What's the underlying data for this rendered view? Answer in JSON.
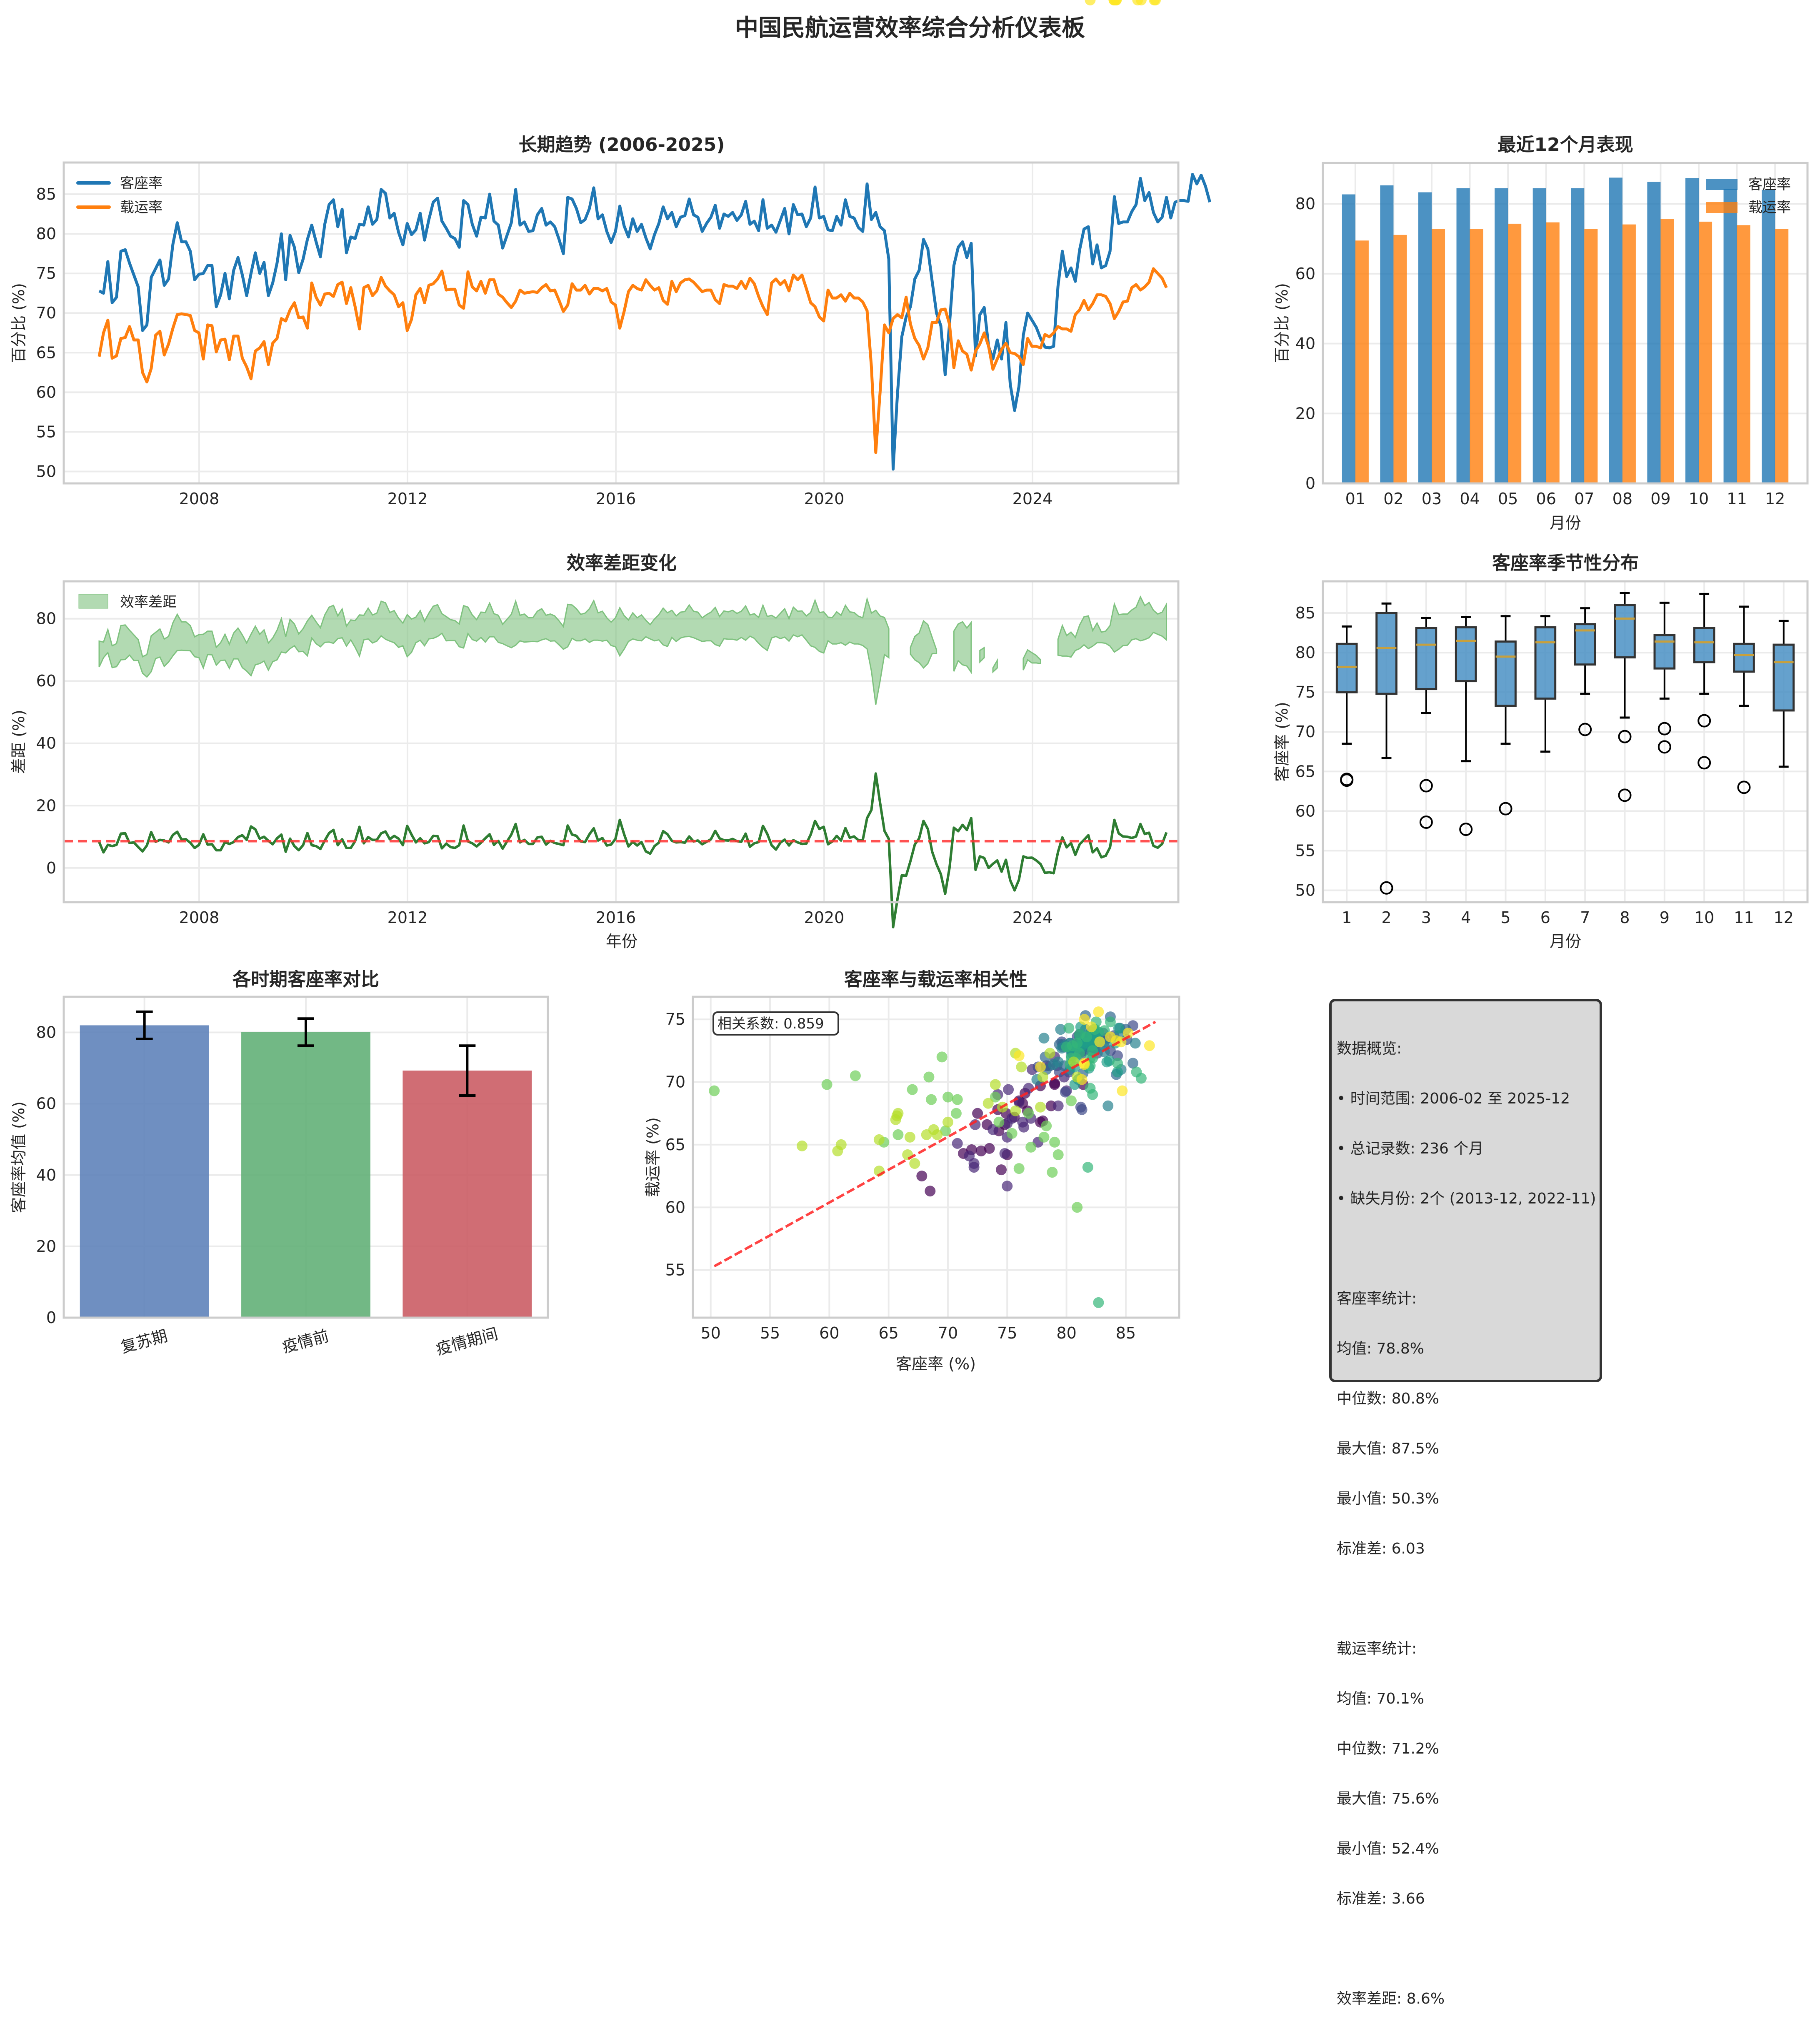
{
  "suptitle": "中国民航运营效率综合分析仪表板",
  "colors": {
    "load_factor": "#1f77b4",
    "cargo_rate": "#ff7f0e",
    "gap_fill": "#7fc27f",
    "gap_line": "#2e7d32",
    "mean_line": "#ff3333",
    "box_fill": "#4a90c4",
    "median": "#c8a03c",
    "period_colors": [
      "#5b7fb8",
      "#5fae74",
      "#c95961"
    ]
  },
  "chart_data": [
    {
      "id": "trend",
      "type": "line",
      "title": "长期趋势 (2006-2025)",
      "xlabel": "",
      "ylabel": "百分比 (%)",
      "xlim": [
        2005.4,
        2026.8
      ],
      "ylim": [
        48.5,
        89
      ],
      "xticks": [
        2008,
        2012,
        2016,
        2020,
        2024
      ],
      "yticks": [
        50,
        55,
        60,
        65,
        70,
        75,
        80,
        85
      ],
      "grid": true,
      "legend": "top-left",
      "start": 2006.08,
      "step": 0.0833,
      "series": [
        {
          "name": "客座率",
          "values": [
            72.8,
            72.5,
            76.5,
            71.3,
            72.0,
            77.8,
            78.0,
            76.3,
            74.8,
            73.3,
            67.8,
            68.5,
            74.5,
            75.6,
            76.7,
            73.5,
            74.3,
            78.7,
            81.4,
            79.0,
            79.0,
            77.8,
            74.2,
            74.9,
            75.0,
            76.0,
            76.0,
            70.8,
            72.3,
            75.0,
            71.8,
            75.4,
            77.0,
            74.8,
            72.2,
            75.0,
            77.6,
            75.0,
            76.4,
            72.2,
            73.8,
            76.3,
            80.0,
            74.2,
            79.8,
            78.3,
            75.1,
            76.8,
            79.3,
            81.1,
            79.0,
            77.1,
            81.2,
            83.7,
            84.3,
            80.9,
            83.1,
            77.6,
            79.6,
            79.4,
            81.2,
            81.1,
            83.4,
            81.2,
            81.8,
            85.6,
            85.1,
            82.0,
            82.6,
            80.2,
            78.6,
            81.3,
            79.9,
            80.5,
            82.6,
            79.2,
            81.8,
            84.0,
            84.5,
            81.6,
            80.7,
            79.7,
            79.4,
            78.3,
            84.2,
            83.7,
            81.2,
            79.7,
            82.1,
            82.0,
            85.0,
            81.6,
            81.1,
            78.2,
            79.8,
            81.4,
            85.6,
            81.1,
            81.5,
            80.3,
            80.4,
            82.4,
            83.2,
            81.1,
            81.5,
            80.9,
            79.3,
            77.5,
            84.6,
            84.4,
            83.2,
            81.4,
            81.8,
            83.2,
            85.8,
            81.9,
            82.4,
            80.3,
            78.9,
            80.3,
            83.5,
            81.0,
            79.6,
            81.9,
            80.3,
            81.2,
            79.5,
            78.1,
            79.9,
            81.3,
            83.4,
            81.9,
            82.7,
            80.9,
            82.1,
            82.3,
            84.4,
            82.4,
            82.1,
            80.3,
            81.3,
            82.1,
            83.6,
            80.7,
            82.5,
            82.2,
            82.7,
            81.7,
            82.4,
            84.1,
            81.2,
            81.6,
            80.4,
            84.3,
            80.7,
            81.1,
            80.2,
            81.7,
            83.2,
            80.0,
            83.7,
            82.4,
            82.5,
            80.9,
            82.0,
            85.9,
            82.0,
            82.2,
            80.5,
            80.4,
            82.2,
            81.1,
            84.3,
            82.2,
            82.0,
            80.8,
            80.3,
            86.3,
            81.8,
            82.7,
            80.9,
            80.4,
            76.8,
            50.3,
            59.8,
            67.0,
            69.5,
            70.8,
            74.3,
            75.4,
            79.3,
            78.1,
            74.0,
            70.0,
            68.4,
            62.2,
            68.6,
            76.0,
            78.3,
            79.0,
            77.0,
            78.8,
            64.6,
            69.8,
            70.7,
            65.8,
            64.2,
            66.6,
            64.2,
            68.8,
            61.0,
            57.7,
            60.7,
            67.2,
            70.0,
            69.1,
            68.2,
            66.8,
            65.7,
            65.6,
            65.8,
            73.4,
            77.8,
            74.6,
            75.7,
            74.0,
            78.0,
            80.6,
            80.9,
            76.2,
            78.6,
            75.7,
            76.0,
            77.8,
            84.7,
            81.3,
            81.5,
            81.5,
            82.8,
            83.7,
            87.0,
            84.2,
            85.2,
            82.7,
            81.5,
            82.1,
            84.6,
            82.0,
            84.0,
            84.2,
            84.2,
            84.1,
            87.5,
            86.3,
            87.4,
            86.0,
            84.0
          ]
        },
        {
          "name": "载运率",
          "values": [
            64.5,
            67.5,
            69.1,
            64.3,
            64.6,
            66.8,
            66.9,
            68.3,
            66.6,
            66.6,
            62.5,
            61.3,
            63.0,
            67.2,
            67.7,
            64.7,
            66.1,
            68.1,
            69.8,
            69.9,
            69.8,
            69.7,
            67.8,
            67.5,
            64.2,
            68.5,
            68.4,
            65.1,
            66.6,
            66.7,
            64.1,
            67.1,
            67.1,
            64.3,
            63.2,
            61.7,
            65.2,
            65.6,
            66.4,
            63.5,
            66.2,
            66.8,
            69.3,
            69.0,
            70.4,
            71.3,
            69.4,
            69.5,
            68.1,
            73.8,
            72.0,
            71.0,
            72.4,
            72.5,
            72.1,
            73.6,
            73.9,
            71.2,
            73.2,
            70.8,
            68.0,
            73.2,
            73.5,
            72.2,
            72.8,
            74.5,
            73.4,
            72.8,
            72.3,
            70.8,
            71.3,
            67.8,
            69.2,
            72.3,
            73.1,
            71.3,
            73.5,
            73.7,
            74.3,
            75.3,
            72.9,
            73.0,
            73.0,
            71.0,
            70.6,
            75.2,
            73.3,
            72.8,
            74.0,
            72.5,
            74.2,
            74.2,
            72.4,
            72.0,
            71.3,
            70.7,
            71.5,
            72.9,
            72.5,
            72.6,
            72.7,
            72.6,
            73.2,
            73.6,
            72.8,
            72.9,
            71.6,
            70.2,
            71.0,
            73.7,
            72.9,
            72.9,
            73.5,
            72.4,
            73.1,
            73.1,
            72.8,
            73.1,
            71.4,
            71.0,
            68.1,
            70.2,
            72.7,
            73.5,
            73.1,
            72.9,
            74.2,
            73.5,
            72.9,
            73.2,
            71.6,
            71.1,
            74.0,
            72.7,
            73.8,
            74.2,
            74.3,
            73.9,
            73.3,
            72.7,
            72.9,
            72.9,
            71.7,
            71.2,
            73.6,
            73.4,
            73.4,
            73.1,
            74.0,
            73.1,
            74.4,
            73.7,
            72.1,
            70.8,
            69.8,
            73.8,
            74.3,
            73.6,
            74.1,
            72.8,
            74.8,
            74.2,
            74.8,
            73.1,
            71.3,
            70.8,
            69.5,
            69.0,
            72.9,
            71.9,
            71.9,
            72.3,
            71.5,
            72.5,
            71.9,
            71.9,
            71.4,
            70.3,
            63.2,
            52.4,
            60.0,
            68.5,
            67.5,
            69.3,
            69.8,
            69.4,
            72.0,
            68.6,
            66.8,
            65.9,
            64.2,
            65.6,
            68.8,
            68.8,
            70.4,
            70.5,
            68.6,
            63.1,
            66.5,
            65.2,
            64.8,
            62.8,
            65.2,
            66.1,
            67.5,
            65.8,
            62.9,
            64.2,
            65.4,
            66.2,
            65.0,
            64.9,
            64.5,
            63.5,
            66.8,
            65.8,
            65.8,
            65.6,
            67.3,
            67.0,
            67.5,
            68.3,
            68.0,
            68.0,
            67.7,
            69.8,
            70.4,
            71.6,
            70.4,
            71.2,
            72.3,
            72.3,
            72.1,
            71.2,
            69.3,
            70.2,
            71.4,
            71.5,
            73.2,
            73.6,
            72.9,
            73.3,
            73.9,
            75.6,
            75.0,
            74.4,
            73.2
          ]
        }
      ]
    },
    {
      "id": "recent12",
      "type": "bar",
      "title": "最近12个月表现",
      "xlabel": "月份",
      "ylabel": "百分比 (%)",
      "ylim": [
        0,
        91.7
      ],
      "yticks": [
        0,
        20,
        40,
        60,
        80
      ],
      "categories": [
        "01",
        "02",
        "03",
        "04",
        "05",
        "06",
        "07",
        "08",
        "09",
        "10",
        "11",
        "12"
      ],
      "legend": "top-right",
      "series": [
        {
          "name": "客座率",
          "values": [
            82.7,
            85.3,
            83.3,
            84.5,
            84.5,
            84.5,
            84.5,
            87.5,
            86.3,
            87.4,
            84.3,
            84.0
          ]
        },
        {
          "name": "载运率",
          "values": [
            69.5,
            71.1,
            72.8,
            72.8,
            74.3,
            74.7,
            72.8,
            74.1,
            75.6,
            74.9,
            73.9,
            72.8
          ]
        }
      ]
    },
    {
      "id": "gap",
      "type": "area",
      "title": "效率差距变化",
      "xlabel": "年份",
      "ylabel": "差距 (%)",
      "xlim": [
        2005.4,
        2026.8
      ],
      "ylim": [
        -11,
        92
      ],
      "xticks": [
        2008,
        2012,
        2016,
        2020,
        2024
      ],
      "yticks": [
        0,
        20,
        40,
        60,
        80
      ],
      "legend": "top-left",
      "fill_label": "效率差距",
      "mean_gap": 8.6,
      "note": "fill between 客座率 and 载运率 where 客座率 > 载运率; line = 客座率 - 载运率"
    },
    {
      "id": "seasonal",
      "type": "box",
      "title": "客座率季节性分布",
      "xlabel": "月份",
      "ylabel": "客座率 (%)",
      "ylim": [
        48.5,
        89
      ],
      "yticks": [
        50,
        55,
        60,
        65,
        70,
        75,
        80,
        85
      ],
      "categories": [
        "1",
        "2",
        "3",
        "4",
        "5",
        "6",
        "7",
        "8",
        "9",
        "10",
        "11",
        "12"
      ],
      "boxes": [
        {
          "whislo": 68.5,
          "q1": 75.0,
          "med": 78.2,
          "q3": 81.1,
          "whishi": 83.3,
          "fliers": [
            63.9,
            64.0
          ]
        },
        {
          "whislo": 66.7,
          "q1": 74.8,
          "med": 80.6,
          "q3": 85.0,
          "whishi": 86.2,
          "fliers": [
            50.3
          ]
        },
        {
          "whislo": 72.4,
          "q1": 75.4,
          "med": 81.0,
          "q3": 83.1,
          "whishi": 84.4,
          "fliers": [
            63.2,
            58.6
          ]
        },
        {
          "whislo": 66.3,
          "q1": 76.4,
          "med": 81.5,
          "q3": 83.2,
          "whishi": 84.5,
          "fliers": [
            57.7
          ]
        },
        {
          "whislo": 68.5,
          "q1": 73.3,
          "med": 79.5,
          "q3": 81.4,
          "whishi": 84.6,
          "fliers": [
            60.3
          ]
        },
        {
          "whislo": 67.5,
          "q1": 74.2,
          "med": 81.3,
          "q3": 83.2,
          "whishi": 84.6,
          "fliers": []
        },
        {
          "whislo": 74.8,
          "q1": 78.5,
          "med": 82.8,
          "q3": 83.6,
          "whishi": 85.6,
          "fliers": [
            70.3
          ]
        },
        {
          "whislo": 71.8,
          "q1": 79.4,
          "med": 84.3,
          "q3": 86.0,
          "whishi": 87.5,
          "fliers": [
            69.4,
            62.0
          ]
        },
        {
          "whislo": 74.2,
          "q1": 78.0,
          "med": 81.4,
          "q3": 82.2,
          "whishi": 86.3,
          "fliers": [
            70.4,
            68.1
          ]
        },
        {
          "whislo": 74.8,
          "q1": 78.8,
          "med": 81.3,
          "q3": 83.1,
          "whishi": 87.4,
          "fliers": [
            71.4,
            66.1
          ]
        },
        {
          "whislo": 73.3,
          "q1": 77.6,
          "med": 79.7,
          "q3": 81.1,
          "whishi": 85.8,
          "fliers": [
            63.0
          ]
        },
        {
          "whislo": 65.6,
          "q1": 72.7,
          "med": 78.8,
          "q3": 81.0,
          "whishi": 84.0,
          "fliers": []
        }
      ]
    },
    {
      "id": "periods",
      "type": "bar",
      "title": "各时期客座率对比",
      "xlabel": "",
      "ylabel": "客座率均值 (%)",
      "ylim": [
        0,
        90
      ],
      "yticks": [
        0,
        20,
        40,
        60,
        80
      ],
      "categories": [
        "复苏期",
        "疫情前",
        "疫情期间"
      ],
      "values": [
        82.0,
        80.1,
        69.3
      ],
      "errors": [
        3.8,
        3.8,
        7.0
      ]
    },
    {
      "id": "scatter",
      "type": "scatter",
      "title": "客座率与载运率相关性",
      "xlabel": "客座率 (%)",
      "ylabel": "载运率 (%)",
      "xlim": [
        48.5,
        89.5
      ],
      "ylim": [
        51.2,
        76.8
      ],
      "xticks": [
        50,
        55,
        60,
        65,
        70,
        75,
        80,
        85
      ],
      "yticks": [
        55,
        60,
        65,
        70,
        75
      ],
      "annotation": "相关系数: 0.859",
      "trend": {
        "x": [
          50.3,
          87.5
        ],
        "y": [
          55.3,
          74.8
        ]
      },
      "colormap": "viridis (by time index)"
    }
  ],
  "summary": {
    "lines": [
      "数据概览:",
      "• 时间范围: 2006-02 至 2025-12",
      "• 总记录数: 236 个月",
      "• 缺失月份: 2个 (2013-12, 2022-11)",
      "",
      "客座率统计:",
      "均值: 78.8%",
      "中位数: 80.8%",
      "最大值: 87.5%",
      "最小值: 50.3%",
      "标准差: 6.03",
      "",
      "载运率统计:",
      "均值: 70.1%",
      "中位数: 71.2%",
      "最大值: 75.6%",
      "最小值: 52.4%",
      "标准差: 3.66",
      "",
      "效率差距: 8.6%"
    ]
  }
}
